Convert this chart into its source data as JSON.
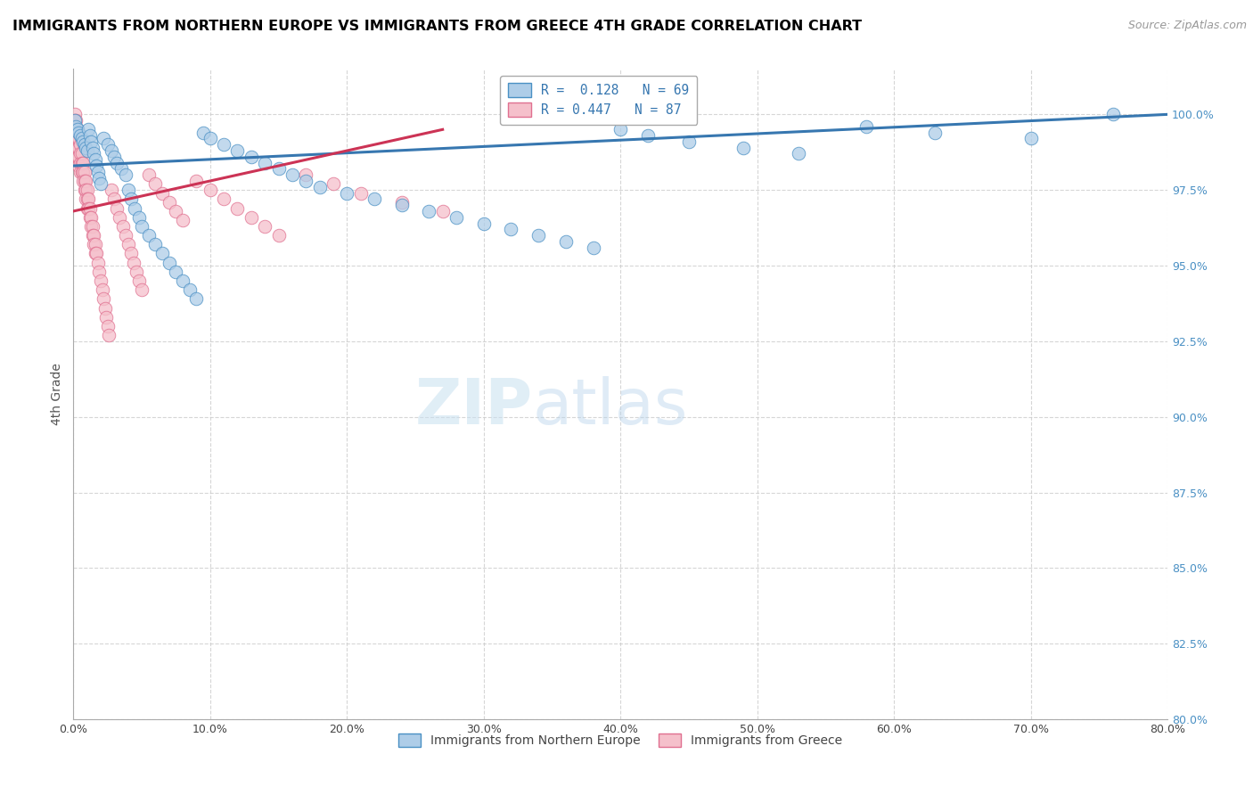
{
  "title": "IMMIGRANTS FROM NORTHERN EUROPE VS IMMIGRANTS FROM GREECE 4TH GRADE CORRELATION CHART",
  "source": "Source: ZipAtlas.com",
  "ylabel": "4th Grade",
  "legend_blue_r": "R =  0.128",
  "legend_blue_n": "N = 69",
  "legend_pink_r": "R = 0.447",
  "legend_pink_n": "N = 87",
  "legend_bottom_blue": "Immigrants from Northern Europe",
  "legend_bottom_pink": "Immigrants from Greece",
  "color_blue_fill": "#aecde8",
  "color_blue_edge": "#4a90c4",
  "color_pink_fill": "#f5c0cb",
  "color_pink_edge": "#e07090",
  "color_blue_line": "#3777b0",
  "color_pink_line": "#cc3355",
  "blue_scatter_x": [
    0.001,
    0.002,
    0.003,
    0.004,
    0.005,
    0.006,
    0.007,
    0.008,
    0.009,
    0.01,
    0.011,
    0.012,
    0.013,
    0.014,
    0.015,
    0.016,
    0.017,
    0.018,
    0.019,
    0.02,
    0.022,
    0.025,
    0.028,
    0.03,
    0.032,
    0.035,
    0.038,
    0.04,
    0.042,
    0.045,
    0.048,
    0.05,
    0.055,
    0.06,
    0.065,
    0.07,
    0.075,
    0.08,
    0.085,
    0.09,
    0.095,
    0.1,
    0.11,
    0.12,
    0.13,
    0.14,
    0.15,
    0.16,
    0.17,
    0.18,
    0.2,
    0.22,
    0.24,
    0.26,
    0.28,
    0.3,
    0.32,
    0.34,
    0.36,
    0.38,
    0.4,
    0.42,
    0.45,
    0.49,
    0.53,
    0.58,
    0.63,
    0.7,
    0.76
  ],
  "blue_scatter_y": [
    99.8,
    99.6,
    99.5,
    99.4,
    99.3,
    99.2,
    99.1,
    99.0,
    98.9,
    98.8,
    99.5,
    99.3,
    99.1,
    98.9,
    98.7,
    98.5,
    98.3,
    98.1,
    97.9,
    97.7,
    99.2,
    99.0,
    98.8,
    98.6,
    98.4,
    98.2,
    98.0,
    97.5,
    97.2,
    96.9,
    96.6,
    96.3,
    96.0,
    95.7,
    95.4,
    95.1,
    94.8,
    94.5,
    94.2,
    93.9,
    99.4,
    99.2,
    99.0,
    98.8,
    98.6,
    98.4,
    98.2,
    98.0,
    97.8,
    97.6,
    97.4,
    97.2,
    97.0,
    96.8,
    96.6,
    96.4,
    96.2,
    96.0,
    95.8,
    95.6,
    99.5,
    99.3,
    99.1,
    98.9,
    98.7,
    99.6,
    99.4,
    99.2,
    100.0
  ],
  "pink_scatter_x": [
    0.001,
    0.001,
    0.001,
    0.001,
    0.002,
    0.002,
    0.002,
    0.002,
    0.003,
    0.003,
    0.003,
    0.003,
    0.004,
    0.004,
    0.004,
    0.004,
    0.005,
    0.005,
    0.005,
    0.005,
    0.006,
    0.006,
    0.006,
    0.007,
    0.007,
    0.007,
    0.008,
    0.008,
    0.008,
    0.009,
    0.009,
    0.009,
    0.01,
    0.01,
    0.01,
    0.011,
    0.011,
    0.012,
    0.012,
    0.013,
    0.013,
    0.014,
    0.014,
    0.015,
    0.015,
    0.016,
    0.016,
    0.017,
    0.018,
    0.019,
    0.02,
    0.021,
    0.022,
    0.023,
    0.024,
    0.025,
    0.026,
    0.028,
    0.03,
    0.032,
    0.034,
    0.036,
    0.038,
    0.04,
    0.042,
    0.044,
    0.046,
    0.048,
    0.05,
    0.055,
    0.06,
    0.065,
    0.07,
    0.075,
    0.08,
    0.09,
    0.1,
    0.11,
    0.12,
    0.13,
    0.14,
    0.15,
    0.17,
    0.19,
    0.21,
    0.24,
    0.27
  ],
  "pink_scatter_y": [
    100.0,
    99.8,
    99.5,
    99.2,
    99.8,
    99.5,
    99.2,
    99.0,
    99.5,
    99.2,
    98.9,
    98.6,
    99.2,
    98.9,
    98.6,
    98.3,
    99.0,
    98.7,
    98.4,
    98.1,
    98.7,
    98.4,
    98.1,
    98.4,
    98.1,
    97.8,
    98.1,
    97.8,
    97.5,
    97.8,
    97.5,
    97.2,
    97.5,
    97.2,
    96.9,
    97.2,
    96.9,
    96.9,
    96.6,
    96.6,
    96.3,
    96.3,
    96.0,
    96.0,
    95.7,
    95.7,
    95.4,
    95.4,
    95.1,
    94.8,
    94.5,
    94.2,
    93.9,
    93.6,
    93.3,
    93.0,
    92.7,
    97.5,
    97.2,
    96.9,
    96.6,
    96.3,
    96.0,
    95.7,
    95.4,
    95.1,
    94.8,
    94.5,
    94.2,
    98.0,
    97.7,
    97.4,
    97.1,
    96.8,
    96.5,
    97.8,
    97.5,
    97.2,
    96.9,
    96.6,
    96.3,
    96.0,
    98.0,
    97.7,
    97.4,
    97.1,
    96.8
  ],
  "blue_trend_x": [
    0.0,
    0.8
  ],
  "blue_trend_y": [
    98.3,
    100.0
  ],
  "pink_trend_x": [
    0.0,
    0.27
  ],
  "pink_trend_y": [
    96.8,
    99.5
  ],
  "xlim": [
    0.0,
    0.8
  ],
  "ylim": [
    80.0,
    101.5
  ],
  "yticks": [
    80.0,
    82.5,
    85.0,
    87.5,
    90.0,
    92.5,
    95.0,
    97.5,
    100.0
  ],
  "xticks": [
    0.0,
    0.1,
    0.2,
    0.3,
    0.4,
    0.5,
    0.6,
    0.7,
    0.8
  ],
  "watermark_zip": "ZIP",
  "watermark_atlas": "atlas",
  "title_fontsize": 11.5,
  "source_fontsize": 9,
  "ylabel_fontsize": 10,
  "tick_fontsize": 9,
  "legend_fontsize": 10,
  "scatter_size": 110,
  "trend_linewidth": 2.2
}
